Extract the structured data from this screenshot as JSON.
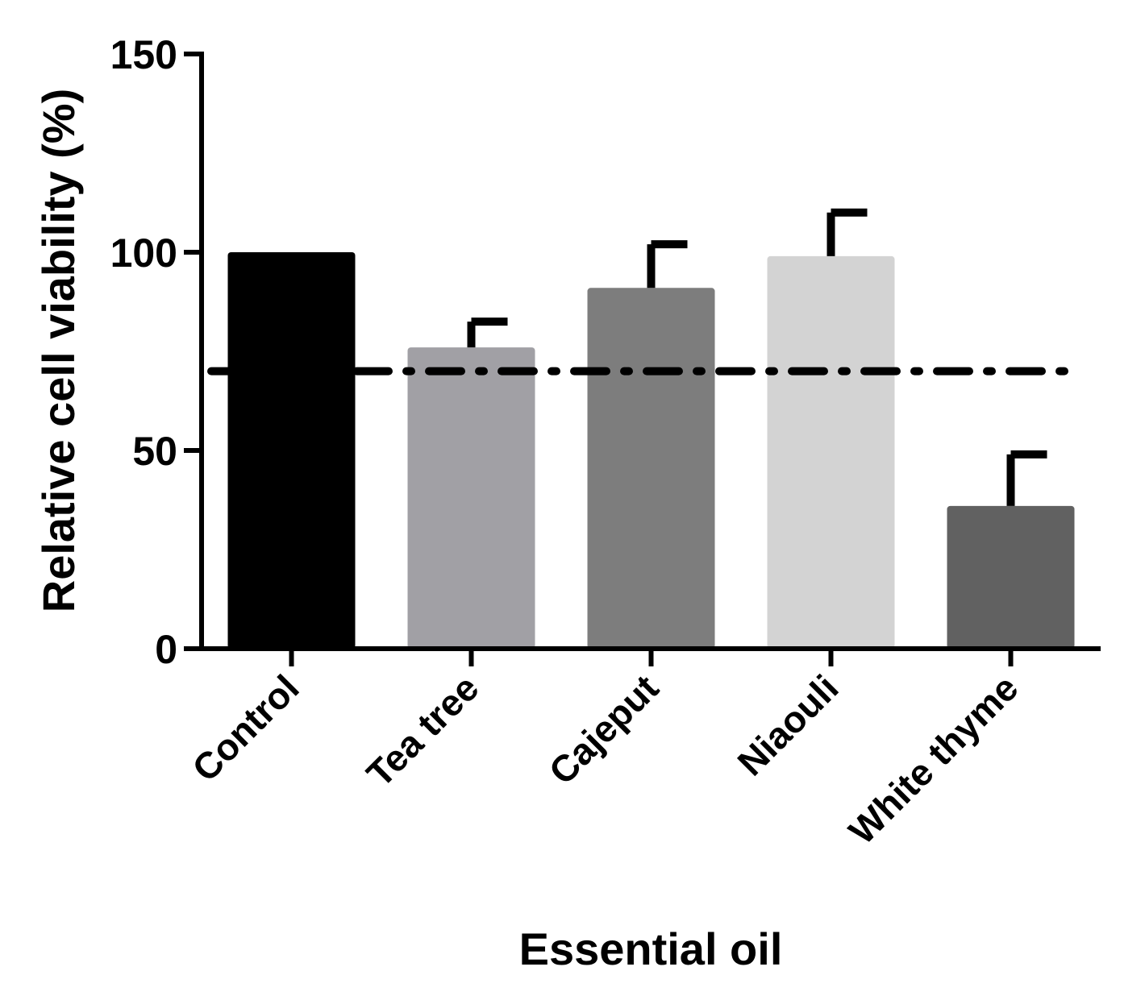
{
  "chart_data": {
    "type": "bar",
    "title": "",
    "xlabel": "Essential oil",
    "ylabel": "Relative cell viability (%)",
    "ylim": [
      0,
      150
    ],
    "yticks": [
      0,
      50,
      100,
      150
    ],
    "y_tick_labels": [
      "0",
      "50",
      "100",
      "150"
    ],
    "categories": [
      "Control",
      "Tea tree",
      "Cajeput",
      "Niaouli",
      "White thyme"
    ],
    "values": [
      100,
      76,
      91,
      99,
      36
    ],
    "error": [
      0,
      6.5,
      11,
      11,
      13
    ],
    "bar_colors": [
      "#000000",
      "#a1a0a5",
      "#7d7d7d",
      "#d3d3d3",
      "#616161"
    ],
    "reference_line": {
      "y": 70,
      "style": "dash-dot"
    },
    "grid": false,
    "legend": "none"
  }
}
